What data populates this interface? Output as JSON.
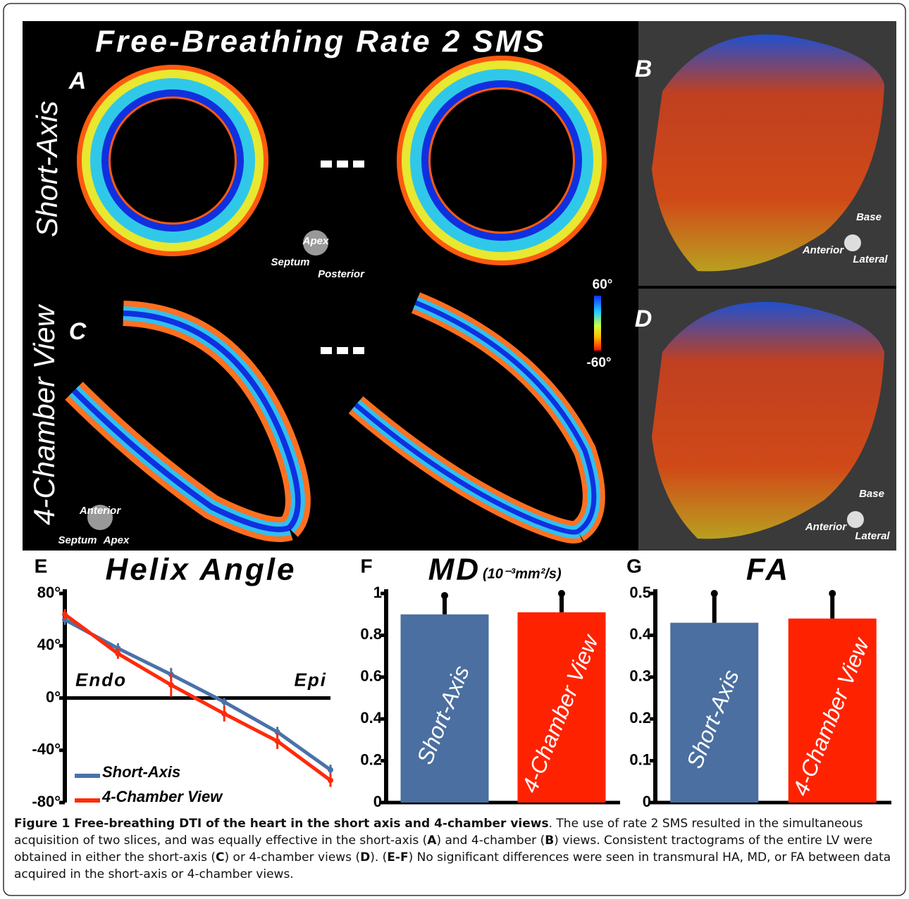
{
  "figure": {
    "title": "Free-Breathing Rate 2 SMS",
    "panels": [
      "A",
      "B",
      "C",
      "D"
    ],
    "row_labels": [
      "Short-Axis",
      "4-Chamber View"
    ],
    "orientation_a": {
      "top": "Apex",
      "left": "Septum",
      "right": "Posterior"
    },
    "orientation_b": {
      "top": "Base",
      "left": "Anterior",
      "right": "Lateral"
    },
    "orientation_c": {
      "top": "Anterior",
      "left": "Septum",
      "right": "Apex"
    },
    "orientation_d": {
      "top": "Base",
      "left": "Anterior",
      "right": "Lateral"
    },
    "colorbar": {
      "max": "60°",
      "min": "-60°"
    }
  },
  "chart_data": [
    {
      "type": "line",
      "panel": "E",
      "title": "Helix Angle",
      "categories": [
        null,
        null,
        null,
        null,
        null,
        null
      ],
      "annotations": [
        "Endo",
        "Epi"
      ],
      "series": [
        {
          "name": "Short-Axis",
          "color": "#4a72a8",
          "values": [
            60,
            38,
            18,
            -3,
            -26,
            -55
          ],
          "errors": [
            4,
            4,
            5,
            3,
            4,
            4
          ]
        },
        {
          "name": "4-Chamber View",
          "color": "#ff2a0a",
          "values": [
            64,
            34,
            10,
            -12,
            -33,
            -63
          ],
          "errors": [
            4,
            4,
            9,
            6,
            6,
            5
          ]
        }
      ],
      "ylim": [
        -80,
        80
      ],
      "yticks": [
        {
          "value": 80,
          "label": "80°"
        },
        {
          "value": 40,
          "label": "40°"
        },
        {
          "value": 0,
          "label": "0°"
        },
        {
          "value": -40,
          "label": "-40°"
        },
        {
          "value": -80,
          "label": "-80°"
        }
      ],
      "legend": "lower-left"
    },
    {
      "type": "bar",
      "panel": "F",
      "title": "MD",
      "unit": "(10⁻³mm²/s)",
      "categories": [
        "Short-Axis",
        "4-Chamber View"
      ],
      "values": [
        0.9,
        0.91
      ],
      "errors": [
        0.09,
        0.09
      ],
      "colors": [
        "#4a6fa0",
        "#ff2200"
      ],
      "ylim": [
        0,
        1
      ],
      "yticks": [
        0,
        0.2,
        0.4,
        0.6,
        0.8,
        1
      ]
    },
    {
      "type": "bar",
      "panel": "G",
      "title": "FA",
      "categories": [
        "Short-Axis",
        "4-Chamber View"
      ],
      "values": [
        0.43,
        0.44
      ],
      "errors": [
        0.07,
        0.06
      ],
      "colors": [
        "#4a6fa0",
        "#ff2200"
      ],
      "ylim": [
        0,
        0.5
      ],
      "yticks": [
        0,
        0.1,
        0.2,
        0.3,
        0.4,
        0.5
      ]
    }
  ],
  "caption": {
    "segments": [
      {
        "text": "Figure 1 Free-breathing DTI of the heart in the short axis and 4-chamber views",
        "bold": true
      },
      {
        "text": ". The use of rate 2 SMS resulted in the simultaneous acquisition of two slices, and was equally effective in the short-axis (",
        "bold": false
      },
      {
        "text": "A",
        "bold": true
      },
      {
        "text": ") and 4-chamber (",
        "bold": false
      },
      {
        "text": "B",
        "bold": true
      },
      {
        "text": ") views. Consistent tractograms of the entire LV were obtained in either the short-axis (",
        "bold": false
      },
      {
        "text": "C",
        "bold": true
      },
      {
        "text": ") or 4-chamber views (",
        "bold": false
      },
      {
        "text": "D",
        "bold": true
      },
      {
        "text": "). (",
        "bold": false
      },
      {
        "text": "E-F",
        "bold": true
      },
      {
        "text": ") No significant differences were seen in transmural HA, MD, or FA between data acquired in the short-axis or 4-chamber views.",
        "bold": false
      }
    ]
  }
}
